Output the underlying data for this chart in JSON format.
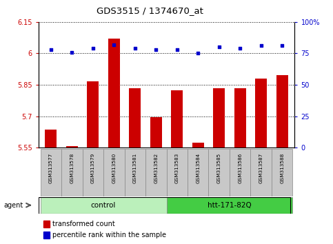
{
  "title": "GDS3515 / 1374670_at",
  "samples": [
    "GSM313577",
    "GSM313578",
    "GSM313579",
    "GSM313580",
    "GSM313581",
    "GSM313582",
    "GSM313583",
    "GSM313584",
    "GSM313585",
    "GSM313586",
    "GSM313587",
    "GSM313588"
  ],
  "bar_values": [
    5.635,
    5.558,
    5.865,
    6.07,
    5.835,
    5.695,
    5.825,
    5.572,
    5.835,
    5.835,
    5.88,
    5.895
  ],
  "percentile_values": [
    78,
    76,
    79,
    82,
    79,
    78,
    78,
    75,
    80,
    79,
    81,
    81
  ],
  "bar_color": "#cc0000",
  "dot_color": "#0000cc",
  "ylim_left": [
    5.55,
    6.15
  ],
  "ylim_right": [
    0,
    100
  ],
  "yticks_left": [
    5.55,
    5.7,
    5.85,
    6.0,
    6.15
  ],
  "yticks_right": [
    0,
    25,
    50,
    75,
    100
  ],
  "ytick_labels_left": [
    "5.55",
    "5.7",
    "5.85",
    "6",
    "6.15"
  ],
  "ytick_labels_right": [
    "0",
    "25",
    "50",
    "75",
    "100%"
  ],
  "groups": [
    {
      "label": "control",
      "start": 0,
      "end": 6,
      "light_color": "#ccf5cc",
      "dark_color": "#44cc44"
    },
    {
      "label": "htt-171-82Q",
      "start": 6,
      "end": 12,
      "light_color": "#44cc44",
      "dark_color": "#44cc44"
    }
  ],
  "agent_label": "agent",
  "grid_color": "#000000",
  "bg_color": "#ffffff",
  "bar_width": 0.55,
  "label_bg": "#c8c8c8",
  "control_color": "#bbf0bb",
  "htt_color": "#44cc44"
}
